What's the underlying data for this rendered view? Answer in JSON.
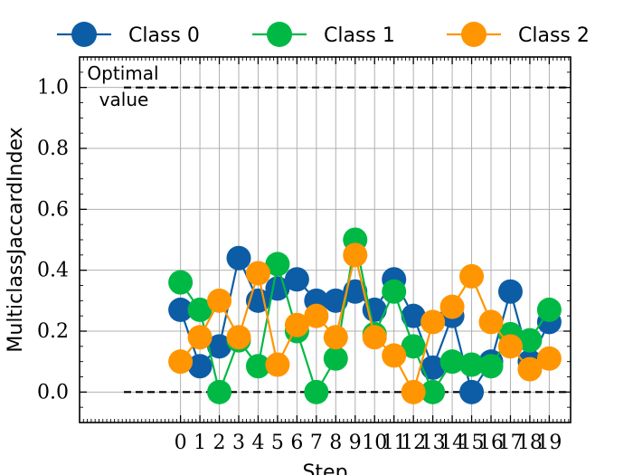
{
  "chart_data": {
    "type": "line",
    "xlabel": "Step",
    "ylabel": "MulticlassJaccardIndex",
    "xlim": [
      -5.2,
      20.1
    ],
    "ylim": [
      -0.1,
      1.1
    ],
    "x": [
      0,
      1,
      2,
      3,
      4,
      5,
      6,
      7,
      8,
      9,
      10,
      11,
      12,
      13,
      14,
      15,
      16,
      17,
      18,
      19
    ],
    "x_tick_labels": [
      "0",
      "1",
      "2",
      "3",
      "4",
      "5",
      "6",
      "7",
      "8",
      "9",
      "10",
      "11",
      "12",
      "13",
      "14",
      "15",
      "16",
      "17",
      "18",
      "19"
    ],
    "y_ticks": [
      0.0,
      0.2,
      0.4,
      0.6,
      0.8,
      1.0
    ],
    "y_tick_labels": [
      "0.0",
      "0.2",
      "0.4",
      "0.6",
      "0.8",
      "1.0"
    ],
    "grid": true,
    "legend_position": "top (outside)",
    "series": [
      {
        "name": "Class 0",
        "color": "#0C5DA5",
        "values": [
          0.27,
          0.085,
          0.15,
          0.44,
          0.3,
          0.34,
          0.37,
          0.3,
          0.3,
          0.33,
          0.27,
          0.37,
          0.25,
          0.08,
          0.25,
          0.0,
          0.1,
          0.33,
          0.1,
          0.23
        ]
      },
      {
        "name": "Class 1",
        "color": "#00B945",
        "values": [
          0.36,
          0.27,
          0.0,
          0.17,
          0.085,
          0.42,
          0.2,
          0.0,
          0.11,
          0.5,
          0.19,
          0.33,
          0.15,
          0.0,
          0.1,
          0.09,
          0.085,
          0.19,
          0.17,
          0.27
        ]
      },
      {
        "name": "Class 2",
        "color": "#FF9500",
        "values": [
          0.1,
          0.18,
          0.3,
          0.18,
          0.39,
          0.09,
          0.22,
          0.25,
          0.18,
          0.45,
          0.18,
          0.12,
          0.0,
          0.23,
          0.28,
          0.38,
          0.23,
          0.15,
          0.075,
          0.11
        ]
      }
    ],
    "reference_lines": [
      {
        "y": 1.0,
        "style": "dashed",
        "color": "#000000"
      },
      {
        "y": 0.0,
        "style": "dashed",
        "color": "#000000"
      }
    ],
    "annotation": {
      "lines": [
        "Optimal",
        "value"
      ]
    }
  }
}
